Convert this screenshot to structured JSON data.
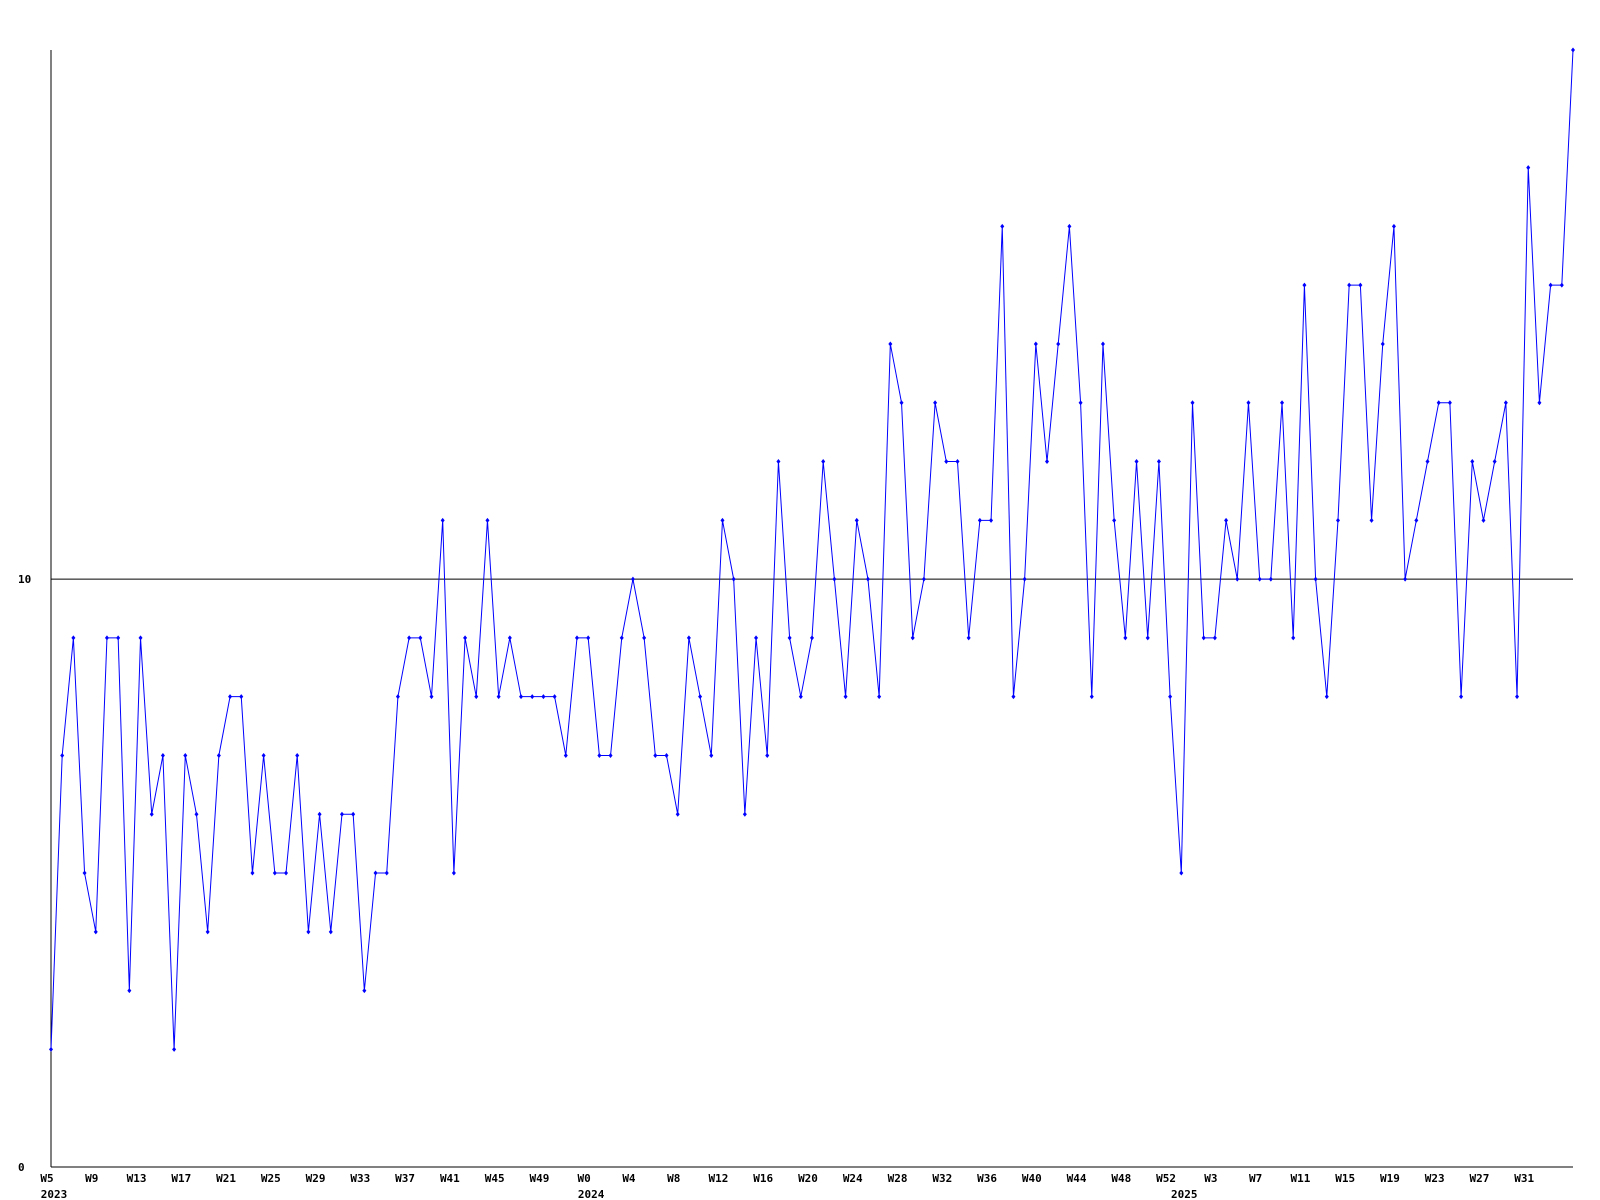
{
  "chart_data": {
    "type": "line",
    "categories": [
      "W5",
      null,
      null,
      null,
      "W9",
      null,
      null,
      null,
      "W13",
      null,
      null,
      null,
      "W17",
      null,
      null,
      null,
      "W21",
      null,
      null,
      null,
      "W25",
      null,
      null,
      null,
      "W29",
      null,
      null,
      null,
      "W33",
      null,
      null,
      null,
      "W37",
      null,
      null,
      null,
      "W41",
      null,
      null,
      null,
      "W45",
      null,
      null,
      null,
      "W49",
      null,
      null,
      null,
      "W0",
      null,
      null,
      null,
      "W4",
      null,
      null,
      null,
      "W8",
      null,
      null,
      null,
      "W12",
      null,
      null,
      null,
      "W16",
      null,
      null,
      null,
      "W20",
      null,
      null,
      null,
      "W24",
      null,
      null,
      null,
      "W28",
      null,
      null,
      null,
      "W32",
      null,
      null,
      null,
      "W36",
      null,
      null,
      null,
      "W40",
      null,
      null,
      null,
      "W44",
      null,
      null,
      null,
      "W48",
      null,
      null,
      null,
      "W52",
      null,
      null,
      null,
      "W3",
      null,
      null,
      null,
      "W7",
      null,
      null,
      null,
      "W11",
      null,
      null,
      null,
      "W15",
      null,
      null,
      null,
      "W19",
      null,
      null,
      null,
      "W23",
      null,
      null,
      null,
      "W27",
      null,
      null,
      null,
      "W31",
      null,
      null,
      null,
      null
    ],
    "x_groups": [
      {
        "label": "2023",
        "start": 0
      },
      {
        "label": "2024",
        "start": 48
      },
      {
        "label": "2025",
        "start": 101
      }
    ],
    "series": [
      {
        "color": "#0000ff",
        "values": [
          2,
          7,
          9,
          5,
          4,
          9,
          9,
          3,
          9,
          6,
          7,
          2,
          7,
          6,
          4,
          7,
          8,
          8,
          5,
          7,
          5,
          5,
          7,
          4,
          6,
          4,
          6,
          6,
          3,
          5,
          5,
          8,
          9,
          9,
          8,
          11,
          5,
          9,
          8,
          11,
          8,
          9,
          8,
          8,
          8,
          8,
          7,
          9,
          9,
          7,
          7,
          9,
          10,
          9,
          7,
          7,
          6,
          9,
          8,
          7,
          11,
          10,
          6,
          9,
          7,
          12,
          9,
          8,
          9,
          12,
          10,
          8,
          11,
          10,
          8,
          14,
          13,
          9,
          10,
          13,
          12,
          12,
          9,
          11,
          11,
          16,
          8,
          10,
          14,
          12,
          14,
          16,
          13,
          8,
          14,
          11,
          9,
          12,
          9,
          12,
          8,
          5,
          13,
          9,
          9,
          11,
          10,
          13,
          10,
          10,
          13,
          9,
          15,
          10,
          8,
          11,
          15,
          15,
          11,
          14,
          16,
          10,
          11,
          12,
          13,
          13,
          8,
          12,
          11,
          12,
          13,
          8,
          17,
          13,
          15,
          15,
          19
        ]
      }
    ],
    "ylim": [
      0,
      19
    ],
    "yticks": [
      0,
      10
    ],
    "grid": true
  }
}
